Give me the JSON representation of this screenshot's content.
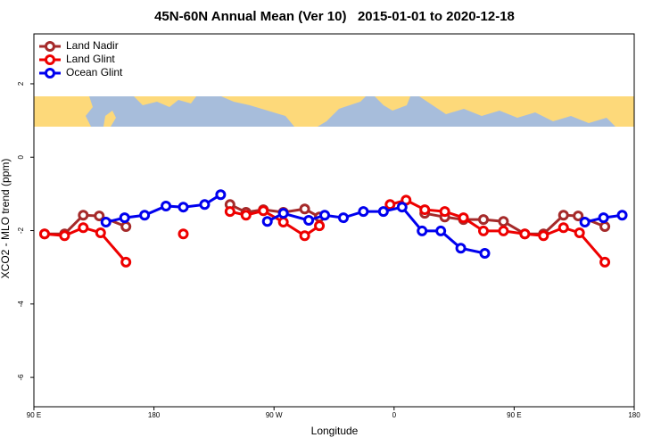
{
  "chart_data": {
    "type": "line",
    "title": "45N-60N Annual Mean (Ver 10)   2015-01-01 to 2020-12-18",
    "x_label": "Longitude",
    "y_label": "XCO2 - MLO trend (ppm)",
    "xlim": [
      90,
      540
    ],
    "ylim": [
      -6.8,
      3.36
    ],
    "xticks": [
      {
        "value": 90,
        "label": "90 E"
      },
      {
        "value": 180,
        "label": "180"
      },
      {
        "value": 270,
        "label": "90 W"
      },
      {
        "value": 360,
        "label": "0"
      },
      {
        "value": 450,
        "label": "90 E"
      },
      {
        "value": 540,
        "label": "180"
      }
    ],
    "yticks": [
      2,
      0,
      -2,
      -4,
      -6
    ],
    "legend": "top-left",
    "series": [
      {
        "name": "Land Nadir",
        "color": "#a52a2a",
        "x": [
          98,
          113,
          127,
          139,
          159,
          null,
          237,
          249,
          262,
          277,
          293,
          304,
          null,
          383,
          398,
          412,
          427,
          442,
          458,
          472,
          487,
          498,
          518
        ],
        "values": [
          -2.09,
          -2.09,
          -1.58,
          -1.6,
          -1.89,
          null,
          -1.29,
          -1.5,
          -1.43,
          -1.5,
          -1.41,
          -1.63,
          null,
          -1.53,
          -1.63,
          -1.7,
          -1.7,
          -1.75,
          -2.09,
          -2.09,
          -1.58,
          -1.6,
          -1.89
        ]
      },
      {
        "name": "Land Glint",
        "color": "#ee0000",
        "x": [
          98,
          113,
          127,
          140,
          159,
          null,
          202,
          null,
          237,
          249,
          262,
          277,
          293,
          304,
          null,
          357,
          369,
          383,
          398,
          412,
          427,
          442,
          458,
          472,
          487,
          499,
          518
        ],
        "values": [
          -2.09,
          -2.14,
          -1.92,
          -2.06,
          -2.86,
          null,
          -2.09,
          null,
          -1.48,
          -1.58,
          -1.46,
          -1.77,
          -2.14,
          -1.87,
          null,
          -1.29,
          -1.17,
          -1.43,
          -1.48,
          -1.65,
          -2.01,
          -2.01,
          -2.09,
          -2.14,
          -1.92,
          -2.06,
          -2.86
        ]
      },
      {
        "name": "Ocean Glint",
        "color": "#0000ee",
        "x": [
          144,
          158,
          173,
          189,
          202,
          218,
          230,
          null,
          265,
          277,
          296,
          308,
          322,
          337,
          352,
          366,
          381,
          395,
          410,
          428,
          null,
          503,
          517,
          531
        ],
        "values": [
          -1.77,
          -1.65,
          -1.58,
          -1.33,
          -1.36,
          -1.29,
          -1.02,
          null,
          -1.75,
          -1.53,
          -1.72,
          -1.58,
          -1.65,
          -1.48,
          -1.48,
          -1.36,
          -2.01,
          -2.01,
          -2.48,
          -2.62,
          null,
          -1.77,
          -1.65,
          -1.58
        ]
      }
    ]
  }
}
